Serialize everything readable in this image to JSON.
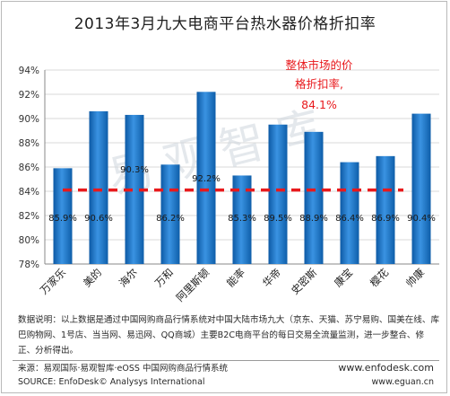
{
  "title": "2013年3月九大电商平台热水器价格折扣率",
  "chart_data": {
    "type": "bar",
    "categories": [
      "万家乐",
      "美的",
      "海尔",
      "万和",
      "阿里斯顿",
      "能率",
      "华帝",
      "史密斯",
      "康宝",
      "樱花",
      "帅康"
    ],
    "values": [
      85.9,
      90.6,
      90.3,
      86.2,
      92.2,
      85.3,
      89.5,
      88.9,
      86.4,
      86.9,
      90.4
    ],
    "value_labels": [
      "85.9%",
      "90.6%",
      "90.3%",
      "86.2%",
      "92.2%",
      "85.3%",
      "89.5%",
      "88.9%",
      "86.4%",
      "86.9%",
      "90.4%"
    ],
    "yticks": [
      "78%",
      "80%",
      "82%",
      "84%",
      "86%",
      "88%",
      "90%",
      "92%",
      "94%"
    ],
    "ylim": [
      78,
      94
    ],
    "grid": true,
    "reference_value": 84.1,
    "annotation": {
      "line1": "整体市场的价",
      "line2": "格折扣率,",
      "value": "84.1%"
    },
    "bar_color": "#1f77c9",
    "ref_color": "#e8191c"
  },
  "watermark": "易观智库",
  "note_text": "数据说明：以上数据是通过中国网购商品行情系统对中国大陆市场九大（京东、天猫、苏宁易购、国美在线、库巴购物网、1号店、当当网、易迅网、QQ商城）主要B2C电商平台的每日交易全流量监测，进一步整合、修正、分析得出。",
  "source_cn": "来源：易观国际·易观智库·eOSS 中国网购商品行情系统",
  "source_en": "SOURCE: EnfoDesk© Analysys International",
  "website1": "www.enfodesk.com",
  "website2": "www.eguan.cn"
}
